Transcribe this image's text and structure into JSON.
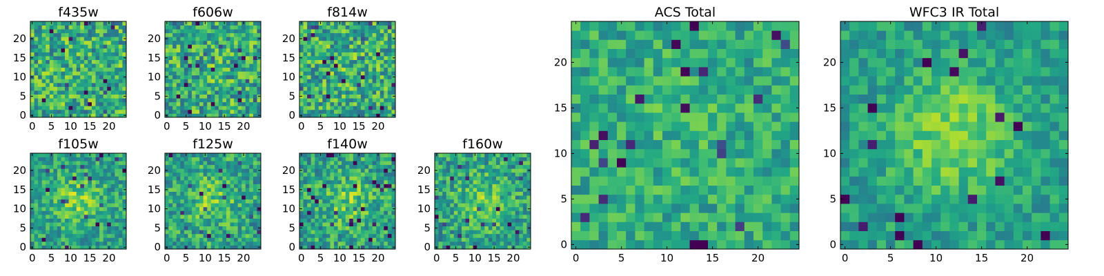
{
  "chart_data": [
    {
      "type": "heatmap",
      "title": "f435w",
      "x_ticks": [
        "0",
        "5",
        "10",
        "15",
        "20"
      ],
      "y_ticks": [
        "0",
        "5",
        "10",
        "15",
        "20"
      ],
      "grid_size": 25,
      "colormap": "viridis",
      "center_peak": 0.0,
      "noise": 0.55,
      "seed": 11
    },
    {
      "type": "heatmap",
      "title": "f606w",
      "x_ticks": [
        "0",
        "5",
        "10",
        "15",
        "20"
      ],
      "y_ticks": [
        "0",
        "5",
        "10",
        "15",
        "20"
      ],
      "grid_size": 25,
      "colormap": "viridis",
      "center_peak": 0.05,
      "noise": 0.55,
      "seed": 23
    },
    {
      "type": "heatmap",
      "title": "f814w",
      "x_ticks": [
        "0",
        "5",
        "10",
        "15",
        "20"
      ],
      "y_ticks": [
        "0",
        "5",
        "10",
        "15",
        "20"
      ],
      "grid_size": 25,
      "colormap": "viridis",
      "center_peak": 0.1,
      "noise": 0.55,
      "seed": 37
    },
    {
      "type": "heatmap",
      "title": "f105w",
      "x_ticks": [
        "0",
        "5",
        "10",
        "15",
        "20"
      ],
      "y_ticks": [
        "0",
        "5",
        "10",
        "15",
        "20"
      ],
      "grid_size": 25,
      "colormap": "viridis",
      "center_peak": 0.45,
      "noise": 0.4,
      "seed": 41
    },
    {
      "type": "heatmap",
      "title": "f125w",
      "x_ticks": [
        "0",
        "5",
        "10",
        "15",
        "20"
      ],
      "y_ticks": [
        "0",
        "5",
        "10",
        "15",
        "20"
      ],
      "grid_size": 25,
      "colormap": "viridis",
      "center_peak": 0.35,
      "noise": 0.45,
      "seed": 53
    },
    {
      "type": "heatmap",
      "title": "f140w",
      "x_ticks": [
        "0",
        "5",
        "10",
        "15",
        "20"
      ],
      "y_ticks": [
        "0",
        "5",
        "10",
        "15",
        "20"
      ],
      "grid_size": 25,
      "colormap": "viridis",
      "center_peak": 0.35,
      "noise": 0.45,
      "seed": 67
    },
    {
      "type": "heatmap",
      "title": "f160w",
      "x_ticks": [
        "0",
        "5",
        "10",
        "15",
        "20"
      ],
      "y_ticks": [
        "0",
        "5",
        "10",
        "15",
        "20"
      ],
      "grid_size": 25,
      "colormap": "viridis",
      "center_peak": 0.4,
      "noise": 0.45,
      "seed": 79
    },
    {
      "type": "heatmap",
      "title": "ACS Total",
      "x_ticks": [
        "0",
        "5",
        "10",
        "15",
        "20"
      ],
      "y_ticks": [
        "0",
        "5",
        "10",
        "15",
        "20"
      ],
      "grid_size": 25,
      "colormap": "viridis",
      "center_peak": 0.1,
      "noise": 0.35,
      "seed": 97
    },
    {
      "type": "heatmap",
      "title": "WFC3 IR Total",
      "x_ticks": [
        "0",
        "5",
        "10",
        "15",
        "20"
      ],
      "y_ticks": [
        "0",
        "5",
        "10",
        "15",
        "20"
      ],
      "grid_size": 25,
      "colormap": "viridis",
      "center_peak": 0.55,
      "noise": 0.3,
      "seed": 113
    }
  ]
}
